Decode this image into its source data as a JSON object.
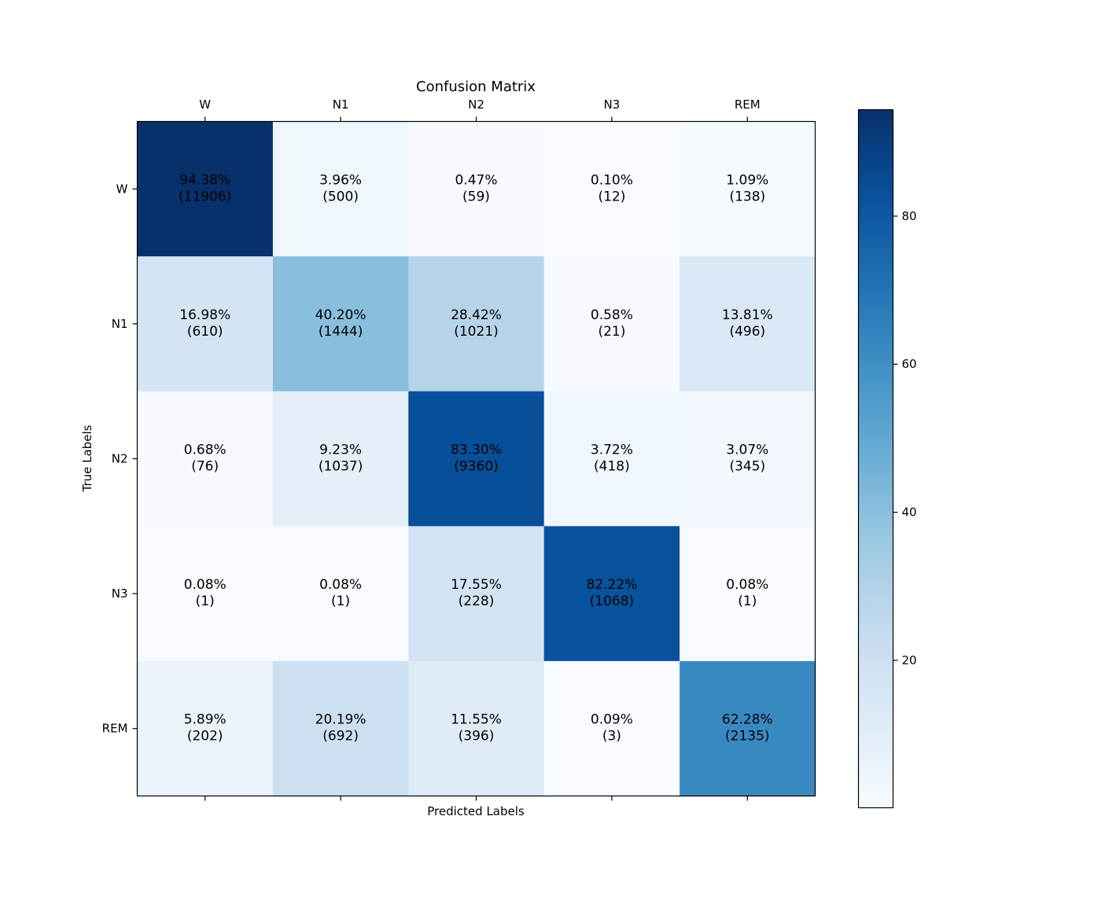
{
  "chart_data": {
    "type": "heatmap",
    "title": "Confusion Matrix",
    "xlabel": "Predicted Labels",
    "ylabel": "True Labels",
    "x_categories": [
      "W",
      "N1",
      "N2",
      "N3",
      "REM"
    ],
    "y_categories": [
      "W",
      "N1",
      "N2",
      "N3",
      "REM"
    ],
    "percent_values": [
      [
        94.38,
        3.96,
        0.47,
        0.1,
        1.09
      ],
      [
        16.98,
        40.2,
        28.42,
        0.58,
        13.81
      ],
      [
        0.68,
        9.23,
        83.3,
        3.72,
        3.07
      ],
      [
        0.08,
        0.08,
        17.55,
        82.22,
        0.08
      ],
      [
        5.89,
        20.19,
        11.55,
        0.09,
        62.28
      ]
    ],
    "count_values": [
      [
        11906,
        500,
        59,
        12,
        138
      ],
      [
        610,
        1444,
        1021,
        21,
        496
      ],
      [
        76,
        1037,
        9360,
        418,
        345
      ],
      [
        1,
        1,
        228,
        1068,
        1
      ],
      [
        202,
        692,
        396,
        3,
        2135
      ]
    ],
    "cell_labels": [
      [
        [
          "94.38%",
          "(11906)"
        ],
        [
          "3.96%",
          "(500)"
        ],
        [
          "0.47%",
          "(59)"
        ],
        [
          "0.10%",
          "(12)"
        ],
        [
          "1.09%",
          "(138)"
        ]
      ],
      [
        [
          "16.98%",
          "(610)"
        ],
        [
          "40.20%",
          "(1444)"
        ],
        [
          "28.42%",
          "(1021)"
        ],
        [
          "0.58%",
          "(21)"
        ],
        [
          "13.81%",
          "(496)"
        ]
      ],
      [
        [
          "0.68%",
          "(76)"
        ],
        [
          "9.23%",
          "(1037)"
        ],
        [
          "83.30%",
          "(9360)"
        ],
        [
          "3.72%",
          "(418)"
        ],
        [
          "3.07%",
          "(345)"
        ]
      ],
      [
        [
          "0.08%",
          "(1)"
        ],
        [
          "0.08%",
          "(1)"
        ],
        [
          "17.55%",
          "(228)"
        ],
        [
          "82.22%",
          "(1068)"
        ],
        [
          "0.08%",
          "(1)"
        ]
      ],
      [
        [
          "5.89%",
          "(202)"
        ],
        [
          "20.19%",
          "(692)"
        ],
        [
          "11.55%",
          "(396)"
        ],
        [
          "0.09%",
          "(3)"
        ],
        [
          "62.28%",
          "(2135)"
        ]
      ]
    ],
    "colormap": "Blues",
    "colorbar": {
      "range": [
        0.08,
        94.38
      ],
      "ticks": [
        20,
        40,
        60,
        80
      ],
      "tick_labels": [
        "20",
        "40",
        "60",
        "80"
      ]
    },
    "grid": false
  }
}
